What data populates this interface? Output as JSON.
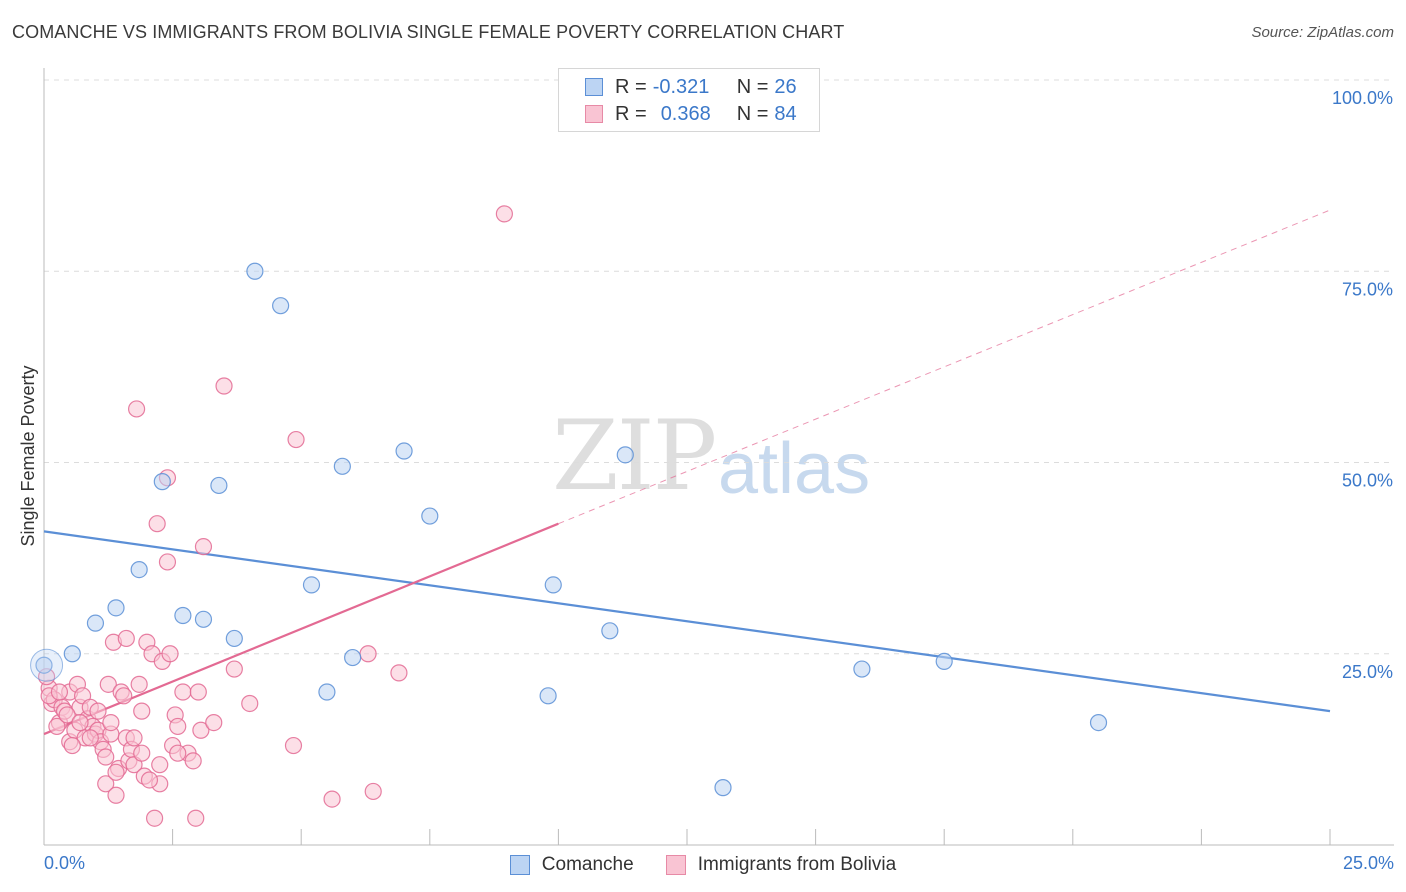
{
  "title": "COMANCHE VS IMMIGRANTS FROM BOLIVIA SINGLE FEMALE POVERTY CORRELATION CHART",
  "source": "Source: ZipAtlas.com",
  "watermark": {
    "zip": "ZIP",
    "atlas": "atlas"
  },
  "legend": {
    "rows": [
      {
        "r_label": "R =",
        "r_value": "-0.321",
        "n_label": "N =",
        "n_value": "26",
        "fill": "#bcd4f3",
        "stroke": "#5b8fd6"
      },
      {
        "r_label": "R =",
        "r_value": "0.368",
        "n_label": "N =",
        "n_value": "84",
        "fill": "#f9c4d3",
        "stroke": "#e78aa6"
      }
    ]
  },
  "bottom_legend": [
    {
      "label": "Comanche",
      "fill": "#bcd4f3",
      "stroke": "#5b8fd6"
    },
    {
      "label": "Immigrants from Bolivia",
      "fill": "#f9c4d3",
      "stroke": "#e78aa6"
    }
  ],
  "chart_data": {
    "type": "scatter",
    "title": "COMANCHE VS IMMIGRANTS FROM BOLIVIA SINGLE FEMALE POVERTY CORRELATION CHART",
    "xlabel": "",
    "ylabel": "Single Female Poverty",
    "xlim": [
      0,
      25
    ],
    "ylim": [
      0,
      100
    ],
    "x_tick_labels": [
      {
        "value": 0,
        "label": "0.0%"
      },
      {
        "value": 25,
        "label": "25.0%"
      }
    ],
    "y_tick_labels": [
      {
        "value": 25,
        "label": "25.0%"
      },
      {
        "value": 50,
        "label": "50.0%"
      },
      {
        "value": 75,
        "label": "75.0%"
      },
      {
        "value": 100,
        "label": "100.0%"
      }
    ],
    "grid": true,
    "series": [
      {
        "name": "Comanche",
        "color": "#5b8fd6",
        "fill": "#bcd4f3",
        "points": [
          [
            0.0,
            23.5
          ],
          [
            0.55,
            25.0
          ],
          [
            1.0,
            29.0
          ],
          [
            1.4,
            31.0
          ],
          [
            1.85,
            36.0
          ],
          [
            2.3,
            47.5
          ],
          [
            2.7,
            30.0
          ],
          [
            3.1,
            29.5
          ],
          [
            3.4,
            47.0
          ],
          [
            3.7,
            27.0
          ],
          [
            4.1,
            75.0
          ],
          [
            4.6,
            70.5
          ],
          [
            5.2,
            34.0
          ],
          [
            5.5,
            20.0
          ],
          [
            5.8,
            49.5
          ],
          [
            6.0,
            24.5
          ],
          [
            7.0,
            51.5
          ],
          [
            7.5,
            43.0
          ],
          [
            9.8,
            19.5
          ],
          [
            9.9,
            34.0
          ],
          [
            11.0,
            28.0
          ],
          [
            11.3,
            51.0
          ],
          [
            13.2,
            7.5
          ],
          [
            15.9,
            23.0
          ],
          [
            17.5,
            24.0
          ],
          [
            20.5,
            16.0
          ]
        ],
        "trend": {
          "x0": 0,
          "y0": 41,
          "x1": 25,
          "y1": 17.5
        }
      },
      {
        "name": "Immigrants from Bolivia",
        "color": "#e36a93",
        "fill": "#f9c4d3",
        "points": [
          [
            0.1,
            20.5
          ],
          [
            0.15,
            18.5
          ],
          [
            0.2,
            19.0
          ],
          [
            0.3,
            16.0
          ],
          [
            0.35,
            18.0
          ],
          [
            0.4,
            17.5
          ],
          [
            0.5,
            20.0
          ],
          [
            0.5,
            13.5
          ],
          [
            0.6,
            15.0
          ],
          [
            0.65,
            21.0
          ],
          [
            0.7,
            18.0
          ],
          [
            0.75,
            19.5
          ],
          [
            0.8,
            14.0
          ],
          [
            0.85,
            16.5
          ],
          [
            0.9,
            18.0
          ],
          [
            0.95,
            15.5
          ],
          [
            1.0,
            14.5
          ],
          [
            1.05,
            15.0
          ],
          [
            1.1,
            13.5
          ],
          [
            1.15,
            12.5
          ],
          [
            1.2,
            11.5
          ],
          [
            1.2,
            8.0
          ],
          [
            1.25,
            21.0
          ],
          [
            1.3,
            14.5
          ],
          [
            1.35,
            26.5
          ],
          [
            1.4,
            6.5
          ],
          [
            1.45,
            10.0
          ],
          [
            1.5,
            20.0
          ],
          [
            1.55,
            19.5
          ],
          [
            1.6,
            27.0
          ],
          [
            1.6,
            14.0
          ],
          [
            1.65,
            11.0
          ],
          [
            1.7,
            12.5
          ],
          [
            1.75,
            10.5
          ],
          [
            1.8,
            57.0
          ],
          [
            1.85,
            21.0
          ],
          [
            1.9,
            17.5
          ],
          [
            1.9,
            12.0
          ],
          [
            1.95,
            9.0
          ],
          [
            2.0,
            26.5
          ],
          [
            2.1,
            25.0
          ],
          [
            2.15,
            3.5
          ],
          [
            2.2,
            42.0
          ],
          [
            2.25,
            10.5
          ],
          [
            2.25,
            8.0
          ],
          [
            2.3,
            24.0
          ],
          [
            2.4,
            48.0
          ],
          [
            2.4,
            37.0
          ],
          [
            2.45,
            25.0
          ],
          [
            2.5,
            13.0
          ],
          [
            2.55,
            17.0
          ],
          [
            2.6,
            15.5
          ],
          [
            2.7,
            20.0
          ],
          [
            2.8,
            12.0
          ],
          [
            2.9,
            11.0
          ],
          [
            2.95,
            3.5
          ],
          [
            3.0,
            20.0
          ],
          [
            3.05,
            15.0
          ],
          [
            3.1,
            39.0
          ],
          [
            3.3,
            16.0
          ],
          [
            3.5,
            60.0
          ],
          [
            3.7,
            23.0
          ],
          [
            4.0,
            18.5
          ],
          [
            4.9,
            53.0
          ],
          [
            4.85,
            13.0
          ],
          [
            5.6,
            6.0
          ],
          [
            6.3,
            25.0
          ],
          [
            6.4,
            7.0
          ],
          [
            6.9,
            22.5
          ],
          [
            8.95,
            82.5
          ],
          [
            0.25,
            15.5
          ],
          [
            0.45,
            17.0
          ],
          [
            0.55,
            13.0
          ],
          [
            0.7,
            16.0
          ],
          [
            1.05,
            17.5
          ],
          [
            1.3,
            16.0
          ],
          [
            1.4,
            9.5
          ],
          [
            1.75,
            14.0
          ],
          [
            2.05,
            8.5
          ],
          [
            2.6,
            12.0
          ],
          [
            0.05,
            22.0
          ],
          [
            0.1,
            19.5
          ],
          [
            0.3,
            20.0
          ],
          [
            0.9,
            14.0
          ]
        ],
        "trend": {
          "x0": 0,
          "y0": 14.5,
          "x1": 10,
          "y1": 42
        },
        "trend_extension": {
          "x0": 10,
          "y0": 42,
          "x1": 25,
          "y1": 83
        }
      }
    ]
  }
}
